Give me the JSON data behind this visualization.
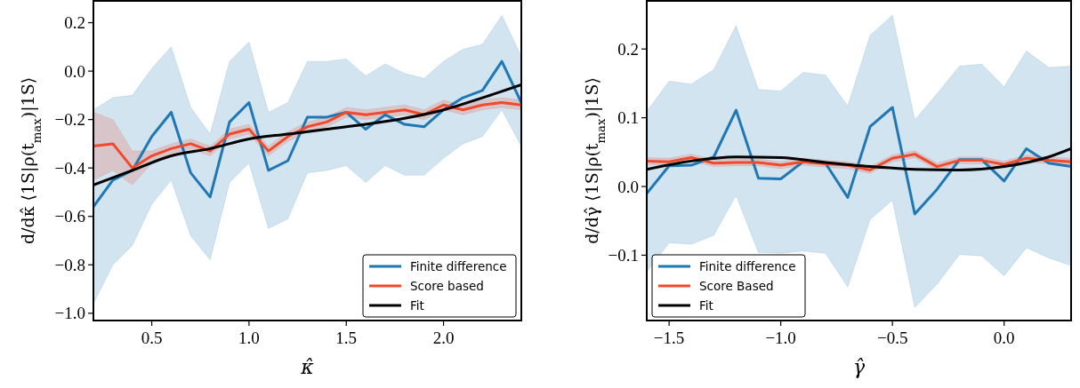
{
  "chart_data": [
    {
      "type": "line",
      "xlabel": "κ̂",
      "ylabel": "d/dκ̂ ⟨1S|ρ(t$_{max}$)|1S⟩",
      "legend": "bottom right",
      "xlim": [
        0.2,
        2.4
      ],
      "ylim": [
        -1.03,
        0.29
      ],
      "xticks": [
        {
          "value": 0.5,
          "label": "0.5"
        },
        {
          "value": 1,
          "label": "1.0"
        },
        {
          "value": 1.5,
          "label": "1.5"
        },
        {
          "value": 2,
          "label": "2.0"
        }
      ],
      "yticks": [
        {
          "value": -1,
          "label": "−1.0"
        },
        {
          "value": -0.8,
          "label": "−0.8"
        },
        {
          "value": -0.6,
          "label": "−0.6"
        },
        {
          "value": -0.4,
          "label": "−0.4"
        },
        {
          "value": -0.2,
          "label": "−0.2"
        },
        {
          "value": 0,
          "label": "0.0"
        },
        {
          "value": 0.2,
          "label": "0.2"
        }
      ],
      "x": [
        0.2,
        0.3,
        0.4,
        0.5,
        0.6,
        0.7,
        0.8,
        0.9,
        1.0,
        1.1,
        1.2,
        1.3,
        1.4,
        1.5,
        1.6,
        1.7,
        1.8,
        1.9,
        2.0,
        2.1,
        2.2,
        2.3,
        2.4
      ],
      "series": [
        {
          "name": "Finite difference",
          "color": "#1f77b4",
          "values": [
            -0.56,
            -0.45,
            -0.41,
            -0.27,
            -0.17,
            -0.42,
            -0.52,
            -0.21,
            -0.13,
            -0.41,
            -0.37,
            -0.19,
            -0.19,
            -0.17,
            -0.24,
            -0.18,
            -0.22,
            -0.23,
            -0.16,
            -0.11,
            -0.08,
            0.04,
            -0.13
          ],
          "lower": [
            -0.96,
            -0.8,
            -0.72,
            -0.55,
            -0.45,
            -0.68,
            -0.78,
            -0.46,
            -0.38,
            -0.65,
            -0.61,
            -0.42,
            -0.41,
            -0.39,
            -0.46,
            -0.39,
            -0.43,
            -0.43,
            -0.36,
            -0.3,
            -0.27,
            -0.16,
            -0.31
          ],
          "upper": [
            -0.16,
            -0.11,
            -0.1,
            0.01,
            0.1,
            -0.15,
            -0.26,
            0.04,
            0.12,
            -0.17,
            -0.13,
            0.04,
            0.04,
            0.05,
            -0.02,
            0.03,
            -0.01,
            -0.03,
            0.04,
            0.09,
            0.11,
            0.23,
            0.06
          ]
        },
        {
          "name": "Score based",
          "color": "#ee4a2b",
          "values": [
            -0.31,
            -0.3,
            -0.4,
            -0.35,
            -0.32,
            -0.3,
            -0.33,
            -0.26,
            -0.24,
            -0.33,
            -0.27,
            -0.23,
            -0.21,
            -0.17,
            -0.18,
            -0.17,
            -0.16,
            -0.18,
            -0.14,
            -0.16,
            -0.14,
            -0.13,
            -0.14
          ],
          "lower": [
            -0.45,
            -0.41,
            -0.47,
            -0.38,
            -0.34,
            -0.32,
            -0.35,
            -0.28,
            -0.26,
            -0.35,
            -0.29,
            -0.25,
            -0.23,
            -0.19,
            -0.2,
            -0.19,
            -0.18,
            -0.2,
            -0.16,
            -0.18,
            -0.16,
            -0.15,
            -0.16
          ],
          "upper": [
            -0.17,
            -0.2,
            -0.33,
            -0.33,
            -0.3,
            -0.28,
            -0.31,
            -0.24,
            -0.22,
            -0.31,
            -0.25,
            -0.21,
            -0.19,
            -0.15,
            -0.16,
            -0.15,
            -0.14,
            -0.16,
            -0.12,
            -0.14,
            -0.12,
            -0.11,
            -0.12
          ]
        },
        {
          "name": "Fit",
          "color": "#000000",
          "x": [
            0.2,
            0.4,
            0.6,
            0.8,
            1.0,
            1.2,
            1.4,
            1.6,
            1.8,
            2.0,
            2.2,
            2.4
          ],
          "values": [
            -0.47,
            -0.41,
            -0.35,
            -0.32,
            -0.28,
            -0.26,
            -0.24,
            -0.22,
            -0.195,
            -0.16,
            -0.11,
            -0.056
          ]
        }
      ]
    },
    {
      "type": "line",
      "xlabel": "γ̂",
      "ylabel": "d/dγ̂ ⟨1S|ρ(t$_{max}$)|1S⟩",
      "legend": "bottom left",
      "xlim": [
        -1.6,
        0.3
      ],
      "ylim": [
        -0.195,
        0.27
      ],
      "xticks": [
        {
          "value": -1.5,
          "label": "−1.5"
        },
        {
          "value": -1,
          "label": "−1.0"
        },
        {
          "value": -0.5,
          "label": "−0.5"
        },
        {
          "value": 0,
          "label": "0.0"
        }
      ],
      "yticks": [
        {
          "value": -0.1,
          "label": "−0.1"
        },
        {
          "value": 0,
          "label": "0.0"
        },
        {
          "value": 0.1,
          "label": "0.1"
        },
        {
          "value": 0.2,
          "label": "0.2"
        }
      ],
      "x": [
        -1.6,
        -1.5,
        -1.4,
        -1.3,
        -1.2,
        -1.1,
        -1.0,
        -0.9,
        -0.8,
        -0.7,
        -0.6,
        -0.5,
        -0.4,
        -0.3,
        -0.2,
        -0.1,
        0.0,
        0.1,
        0.2,
        0.3
      ],
      "series": [
        {
          "name": "Finite difference",
          "color": "#1f77b4",
          "values": [
            -0.01,
            0.03,
            0.031,
            0.043,
            0.111,
            0.012,
            0.011,
            0.036,
            0.034,
            -0.016,
            0.087,
            0.115,
            -0.04,
            -0.004,
            0.039,
            0.039,
            0.008,
            0.055,
            0.034,
            0.029
          ],
          "lower": [
            -0.124,
            -0.082,
            -0.084,
            -0.071,
            -0.013,
            -0.096,
            -0.097,
            -0.094,
            -0.097,
            -0.146,
            -0.048,
            -0.02,
            -0.176,
            -0.142,
            -0.099,
            -0.101,
            -0.13,
            -0.089,
            -0.104,
            -0.115
          ],
          "upper": [
            0.109,
            0.153,
            0.149,
            0.17,
            0.234,
            0.141,
            0.139,
            0.166,
            0.162,
            0.117,
            0.22,
            0.249,
            0.097,
            0.135,
            0.175,
            0.178,
            0.145,
            0.197,
            0.173,
            0.175
          ]
        },
        {
          "name": "Score Based",
          "color": "#ee4a2b",
          "values": [
            0.037,
            0.036,
            0.042,
            0.034,
            0.035,
            0.035,
            0.031,
            0.036,
            0.033,
            0.031,
            0.024,
            0.041,
            0.047,
            0.029,
            0.038,
            0.038,
            0.032,
            0.041,
            0.038,
            0.036
          ],
          "lower": [
            0.032,
            0.031,
            0.037,
            0.029,
            0.03,
            0.03,
            0.026,
            0.031,
            0.028,
            0.026,
            0.019,
            0.036,
            0.042,
            0.024,
            0.033,
            0.033,
            0.027,
            0.036,
            0.033,
            0.031
          ],
          "upper": [
            0.042,
            0.041,
            0.047,
            0.039,
            0.04,
            0.04,
            0.036,
            0.041,
            0.038,
            0.036,
            0.029,
            0.046,
            0.052,
            0.034,
            0.043,
            0.043,
            0.037,
            0.046,
            0.043,
            0.041
          ]
        },
        {
          "name": "Fit",
          "color": "#000000",
          "x": [
            -1.6,
            -1.4,
            -1.2,
            -1.0,
            -0.8,
            -0.6,
            -0.4,
            -0.2,
            0.0,
            0.2,
            0.3
          ],
          "values": [
            0.025,
            0.037,
            0.043,
            0.042,
            0.035,
            0.029,
            0.025,
            0.024,
            0.029,
            0.043,
            0.055
          ]
        }
      ]
    }
  ]
}
